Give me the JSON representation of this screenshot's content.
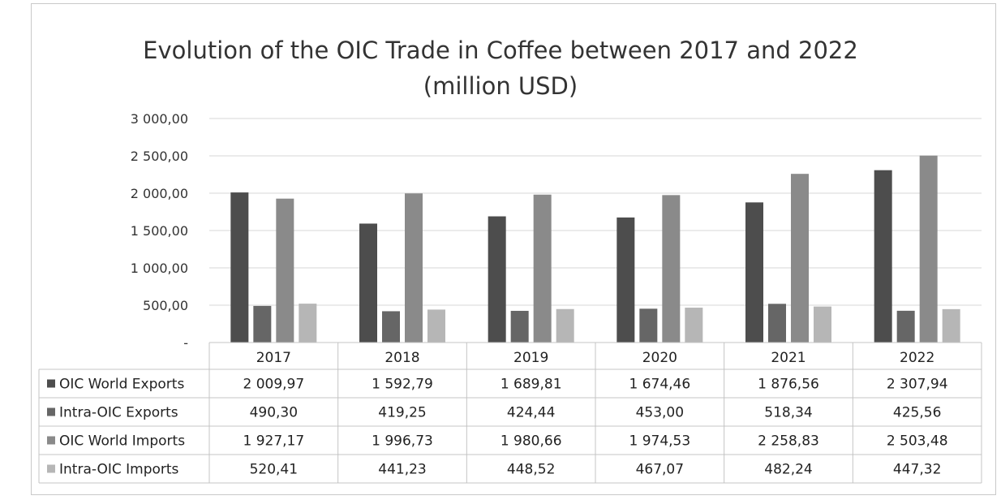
{
  "chart_data": {
    "type": "bar",
    "title": "Evolution of the OIC Trade in Coffee between 2017 and 2022",
    "subtitle": "(million USD)",
    "categories": [
      "2017",
      "2018",
      "2019",
      "2020",
      "2021",
      "2022"
    ],
    "y_ticks": [
      "-",
      "500,00",
      "1 000,00",
      "1 500,00",
      "2 000,00",
      "2 500,00",
      "3 000,00"
    ],
    "ylim": [
      0,
      3000
    ],
    "grid": true,
    "legend": "data-table",
    "series": [
      {
        "name": "OIC World Exports",
        "color": "#4d4d4d",
        "values": [
          2009.97,
          1592.79,
          1689.81,
          1674.46,
          1876.56,
          2307.94
        ],
        "labels": [
          "2 009,97",
          "1 592,79",
          "1 689,81",
          "1 674,46",
          "1 876,56",
          "2 307,94"
        ]
      },
      {
        "name": "Intra-OIC Exports",
        "color": "#666666",
        "values": [
          490.3,
          419.25,
          424.44,
          453.0,
          518.34,
          425.56
        ],
        "labels": [
          "490,30",
          "419,25",
          "424,44",
          "453,00",
          "518,34",
          "425,56"
        ]
      },
      {
        "name": "OIC World Imports",
        "color": "#8a8a8a",
        "values": [
          1927.17,
          1996.73,
          1980.66,
          1974.53,
          2258.83,
          2503.48
        ],
        "labels": [
          "1 927,17",
          "1 996,73",
          "1 980,66",
          "1 974,53",
          "2 258,83",
          "2 503,48"
        ]
      },
      {
        "name": "Intra-OIC Imports",
        "color": "#b6b6b6",
        "values": [
          520.41,
          441.23,
          448.52,
          467.07,
          482.24,
          447.32
        ],
        "labels": [
          "520,41",
          "441,23",
          "448,52",
          "467,07",
          "482,24",
          "447,32"
        ]
      }
    ]
  }
}
